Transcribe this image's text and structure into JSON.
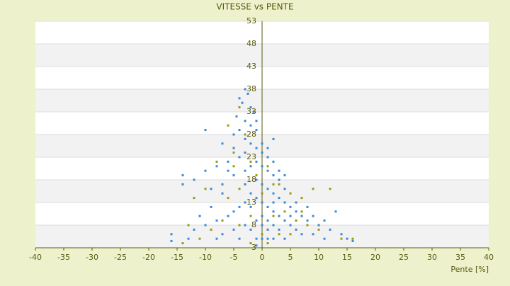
{
  "chart_data": {
    "type": "scatter",
    "title": "VITESSE vs PENTE",
    "x_label": "Pente [%]",
    "xlim": [
      -40,
      40
    ],
    "xticks": [
      -40,
      -35,
      -30,
      -25,
      -20,
      -15,
      -10,
      -5,
      0,
      5,
      10,
      15,
      20,
      25,
      30,
      35,
      40
    ],
    "ylim": [
      3,
      53
    ],
    "yticks": [
      3,
      8,
      13,
      18,
      23,
      28,
      33,
      38,
      43,
      48,
      53
    ],
    "grid": true,
    "series": [
      {
        "color": "#3a8ad6",
        "x": [
          -3,
          -2.5,
          -4,
          -3.5,
          -2,
          -1.5,
          -4.5,
          -3,
          -2,
          -1,
          -5,
          -3,
          -2,
          -1,
          0,
          1,
          -4,
          -6,
          -8,
          -10,
          -14,
          -14,
          -12,
          -9,
          -7,
          -5,
          -3,
          -2,
          -1,
          0,
          1,
          2,
          3,
          -1,
          0,
          1,
          2,
          3,
          4,
          5,
          6,
          7,
          8,
          10,
          12,
          14,
          15,
          16,
          -2,
          -1,
          0,
          1,
          2,
          3,
          4,
          5,
          6,
          7,
          -3,
          -4,
          -5,
          -6,
          -8,
          -10,
          -12,
          -16,
          -16,
          -13,
          -7,
          -5,
          -3,
          -1,
          0,
          1,
          2,
          3,
          0,
          -1,
          1,
          2,
          4,
          -4,
          -8,
          3,
          4,
          2,
          0,
          1,
          -3,
          -5,
          -6,
          -7,
          -9,
          -11,
          -3,
          -2,
          0,
          2,
          4,
          5,
          6,
          8,
          9,
          11,
          13,
          -10,
          -7,
          -4,
          2,
          -1,
          1,
          -2,
          9,
          11,
          -1
        ],
        "values": [
          38,
          37,
          36,
          35,
          34,
          33,
          32,
          31,
          30,
          29,
          28,
          27,
          26,
          25,
          24,
          23,
          23,
          22,
          21,
          20,
          19,
          17,
          18,
          16,
          17,
          19,
          20,
          21,
          22,
          21,
          20,
          19,
          18,
          18,
          17,
          16,
          15,
          14,
          13,
          12,
          11,
          10,
          9,
          8,
          7,
          6,
          5,
          4.5,
          15,
          14,
          13,
          12,
          11,
          10,
          9,
          8,
          7,
          6,
          13,
          12,
          11,
          10,
          9,
          8,
          7,
          6,
          4.5,
          5,
          6,
          7,
          8,
          9,
          10,
          9,
          8,
          7,
          5,
          5,
          5,
          5,
          5,
          5,
          5,
          20,
          19,
          22,
          26,
          25,
          24,
          25,
          20,
          15,
          12,
          10,
          17,
          12,
          8,
          13,
          16,
          10,
          13,
          12,
          10,
          9,
          11,
          29,
          26,
          29,
          27,
          31,
          7,
          7,
          6,
          5,
          3.5
        ]
      },
      {
        "color": "#9a9a10",
        "x": [
          -4,
          -6,
          -3,
          -5,
          -8,
          -2,
          1,
          3,
          5,
          7,
          9,
          12,
          -10,
          -12,
          -6,
          -4,
          0,
          2,
          4,
          6,
          8,
          10,
          14,
          16,
          -9,
          -13,
          -7,
          -2,
          -4,
          0,
          3,
          5,
          -2,
          1,
          -14,
          -11,
          7,
          -1,
          2,
          -5
        ],
        "values": [
          34,
          30,
          28,
          24,
          22,
          22,
          21,
          17,
          15,
          14,
          16,
          16,
          16,
          14,
          14,
          16,
          15,
          10,
          11,
          9,
          8,
          7,
          5,
          5,
          7,
          8,
          9,
          10,
          8,
          6,
          6,
          6,
          4,
          4,
          4,
          5,
          11,
          19,
          17,
          21
        ]
      }
    ]
  }
}
